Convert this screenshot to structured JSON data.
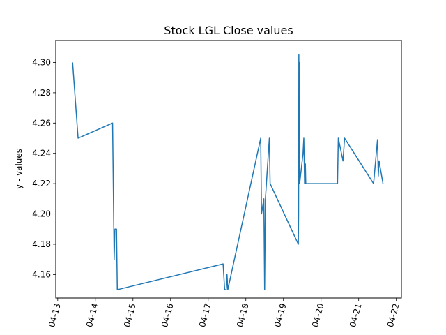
{
  "chart_data": {
    "type": "line",
    "title": "Stock LGL Close values",
    "xlabel": "",
    "ylabel": "y - values",
    "xlim": [
      "2021-04-12T22:45",
      "2021-04-22T03:15"
    ],
    "ylim": [
      4.1445,
      4.3145
    ],
    "grid": false,
    "x_ticks": [
      "04-13",
      "04-14",
      "04-15",
      "04-16",
      "04-17",
      "04-18",
      "04-19",
      "04-20",
      "04-21",
      "04-22"
    ],
    "y_ticks": [
      "4.16",
      "4.18",
      "4.20",
      "4.22",
      "4.24",
      "4.26",
      "4.28",
      "4.30"
    ],
    "series": [
      {
        "color": "#1f77b4",
        "points": [
          [
            "2021-04-13T09:30",
            4.3
          ],
          [
            "2021-04-13T13:00",
            4.25
          ],
          [
            "2021-04-14T11:00",
            4.26
          ],
          [
            "2021-04-14T12:00",
            4.17
          ],
          [
            "2021-04-14T12:30",
            4.19
          ],
          [
            "2021-04-14T13:30",
            4.19
          ],
          [
            "2021-04-14T14:00",
            4.15
          ],
          [
            "2021-04-17T09:30",
            4.167
          ],
          [
            "2021-04-17T10:30",
            4.15
          ],
          [
            "2021-04-17T11:30",
            4.15
          ],
          [
            "2021-04-17T12:00",
            4.16
          ],
          [
            "2021-04-17T12:30",
            4.15
          ],
          [
            "2021-04-18T09:30",
            4.25
          ],
          [
            "2021-04-18T10:00",
            4.2
          ],
          [
            "2021-04-18T11:30",
            4.21
          ],
          [
            "2021-04-18T12:00",
            4.15
          ],
          [
            "2021-04-18T12:30",
            4.21
          ],
          [
            "2021-04-18T15:00",
            4.25
          ],
          [
            "2021-04-18T15:30",
            4.22
          ],
          [
            "2021-04-19T09:30",
            4.18
          ],
          [
            "2021-04-19T09:40",
            4.2
          ],
          [
            "2021-04-19T09:50",
            4.305
          ],
          [
            "2021-04-19T10:00",
            4.23
          ],
          [
            "2021-04-19T10:10",
            4.3
          ],
          [
            "2021-04-19T10:20",
            4.22
          ],
          [
            "2021-04-19T12:30",
            4.24
          ],
          [
            "2021-04-19T13:00",
            4.25
          ],
          [
            "2021-04-19T13:30",
            4.22
          ],
          [
            "2021-04-19T14:00",
            4.233
          ],
          [
            "2021-04-19T14:15",
            4.22
          ],
          [
            "2021-04-19T15:30",
            4.22
          ],
          [
            "2021-04-20T10:30",
            4.22
          ],
          [
            "2021-04-20T11:00",
            4.25
          ],
          [
            "2021-04-20T14:00",
            4.235
          ],
          [
            "2021-04-20T15:00",
            4.25
          ],
          [
            "2021-04-21T09:30",
            4.22
          ],
          [
            "2021-04-21T12:00",
            4.249
          ],
          [
            "2021-04-21T12:30",
            4.225
          ],
          [
            "2021-04-21T13:00",
            4.235
          ],
          [
            "2021-04-21T15:30",
            4.22
          ]
        ]
      }
    ]
  }
}
